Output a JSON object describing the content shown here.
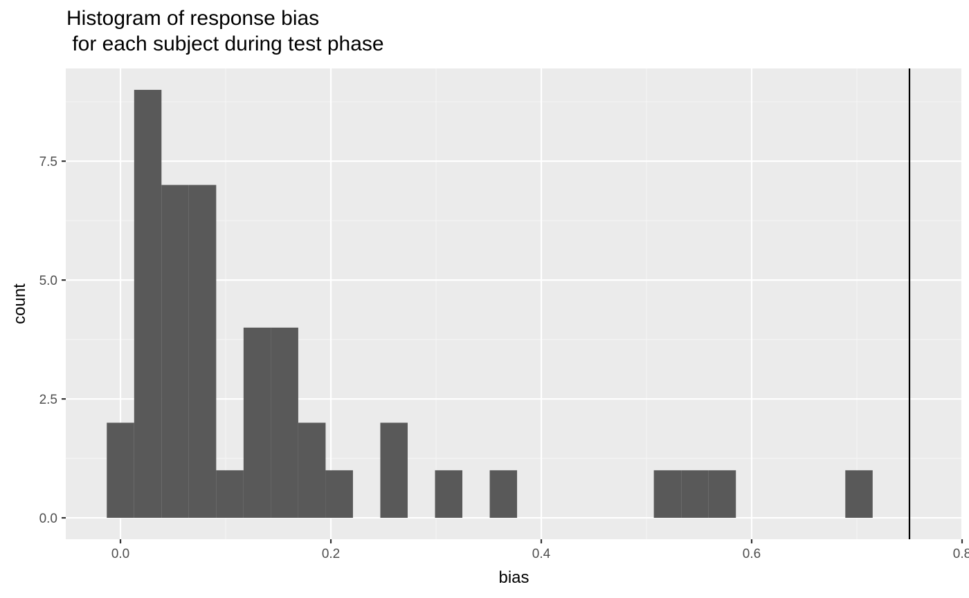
{
  "chart_data": {
    "type": "bar",
    "title_lines": [
      "Histogram of response bias",
      " for each subject during test phase"
    ],
    "xlabel": "bias",
    "ylabel": "count",
    "x_ticks": [
      0.0,
      0.2,
      0.4,
      0.6,
      0.8
    ],
    "x_tick_labels": [
      "0.0",
      "0.2",
      "0.4",
      "0.6",
      "0.8"
    ],
    "y_ticks": [
      0,
      2.5,
      5,
      7.5
    ],
    "y_tick_labels": [
      "0.0",
      "2.5",
      "5.0",
      "7.5"
    ],
    "xlim": [
      -0.052,
      0.8
    ],
    "ylim": [
      -0.45,
      9.45
    ],
    "bin_width": 0.026,
    "bins": [
      {
        "x": 0.0,
        "count": 2
      },
      {
        "x": 0.026,
        "count": 9
      },
      {
        "x": 0.052,
        "count": 7
      },
      {
        "x": 0.078,
        "count": 7
      },
      {
        "x": 0.104,
        "count": 1
      },
      {
        "x": 0.13,
        "count": 4
      },
      {
        "x": 0.156,
        "count": 4
      },
      {
        "x": 0.182,
        "count": 2
      },
      {
        "x": 0.208,
        "count": 1
      },
      {
        "x": 0.26,
        "count": 2
      },
      {
        "x": 0.312,
        "count": 1
      },
      {
        "x": 0.364,
        "count": 1
      },
      {
        "x": 0.52,
        "count": 1
      },
      {
        "x": 0.546,
        "count": 1
      },
      {
        "x": 0.572,
        "count": 1
      },
      {
        "x": 0.702,
        "count": 1
      }
    ],
    "vline_x": 0.75,
    "grid": true,
    "colors": {
      "panel_background": "#EBEBEB",
      "grid_major": "#FFFFFF",
      "grid_minor": "#F5F5F5",
      "bar_fill": "#595959",
      "vline": "#000000",
      "tick_label": "#4D4D4D",
      "axis_title": "#000000"
    }
  }
}
